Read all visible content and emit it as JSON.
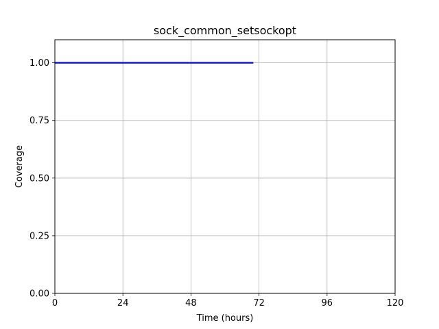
{
  "chart_data": {
    "type": "line",
    "title": "sock_common_setsockopt",
    "xlabel": "Time (hours)",
    "ylabel": "Coverage",
    "xlim": [
      0,
      120
    ],
    "ylim": [
      0,
      1.1
    ],
    "xticks": [
      0,
      24,
      48,
      72,
      96,
      120
    ],
    "xtick_labels": [
      "0",
      "24",
      "48",
      "72",
      "96",
      "120"
    ],
    "yticks": [
      0,
      0.25,
      0.5,
      0.75,
      1.0
    ],
    "ytick_labels": [
      "0.00",
      "0.25",
      "0.50",
      "0.75",
      "1.00"
    ],
    "grid": true,
    "series": [
      {
        "color": "#0000ff",
        "x": [
          0,
          70
        ],
        "y": [
          1.0,
          1.0
        ]
      }
    ]
  }
}
